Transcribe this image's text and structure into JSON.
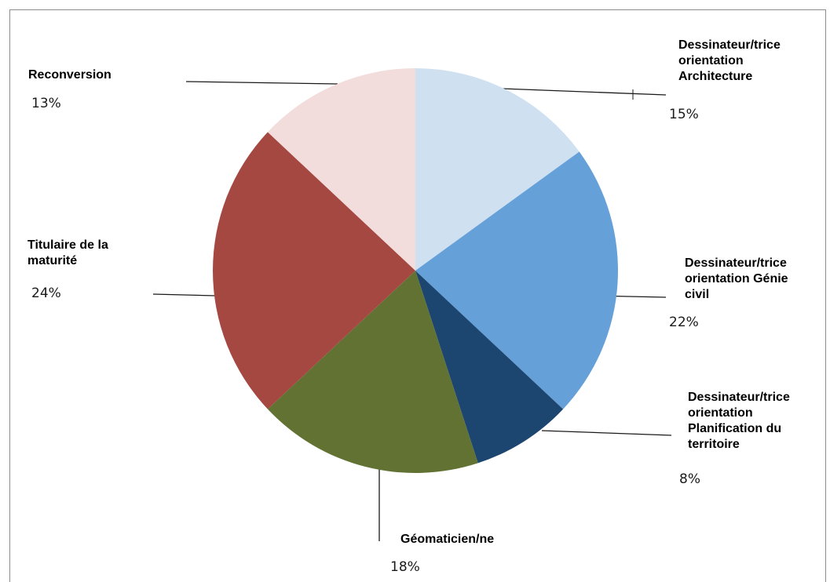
{
  "chart_data": {
    "type": "pie",
    "title": "",
    "slices": [
      {
        "label": "Dessinateur/trice\norientation\nArchitecture",
        "value": 15,
        "value_label": "15%",
        "color": "#cfe0f1"
      },
      {
        "label": "Dessinateur/trice\norientation Génie\ncivil",
        "value": 22,
        "value_label": "22%",
        "color": "#66a0d8"
      },
      {
        "label": "Dessinateur/trice\norientation\nPlanification du\nterritoire",
        "value": 8,
        "value_label": "8%",
        "color": "#1c4670"
      },
      {
        "label": "Géomaticien/ne",
        "value": 18,
        "value_label": "18%",
        "color": "#617233"
      },
      {
        "label": "Titulaire de la\nmaturité",
        "value": 24,
        "value_label": "24%",
        "color": "#a54842"
      },
      {
        "label": "Reconversion",
        "value": 13,
        "value_label": "13%",
        "color": "#f2dcdc"
      }
    ],
    "start_angle_deg": 0,
    "direction": "clockwise",
    "legend": "none"
  }
}
